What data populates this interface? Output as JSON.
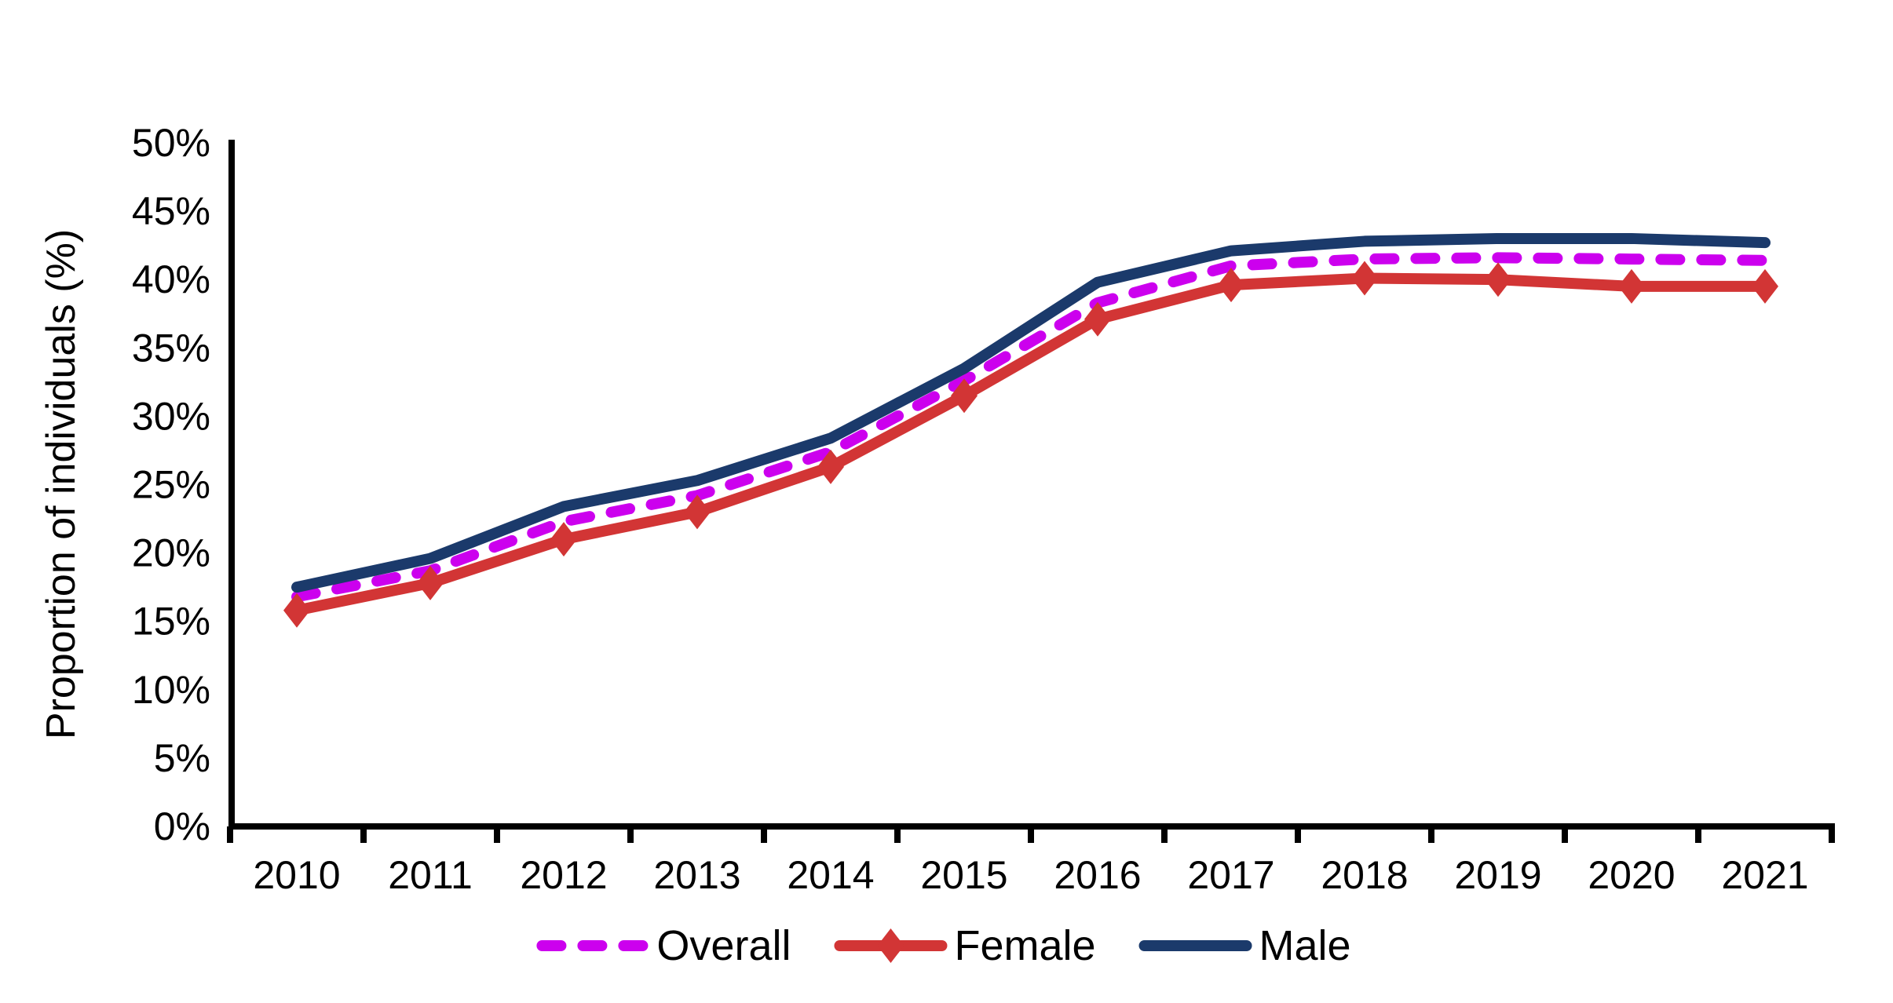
{
  "figure": {
    "background": "#FFFFFF",
    "text_color": "#000000",
    "axis_color": "#000000"
  },
  "chart_data": {
    "type": "line",
    "title": "",
    "xlabel": "",
    "ylabel": "Proportion of individuals (%)",
    "x": [
      2010,
      2011,
      2012,
      2013,
      2014,
      2015,
      2016,
      2017,
      2018,
      2019,
      2020,
      2021
    ],
    "series": [
      {
        "name": "Overall",
        "color": "#CC00EE",
        "line_style": "dashed",
        "marker": "none",
        "values": [
          16.8,
          18.7,
          22.3,
          24.2,
          27.4,
          32.6,
          38.3,
          41.0,
          41.5,
          41.6,
          41.5,
          41.4
        ]
      },
      {
        "name": "Female",
        "color": "#D23535",
        "line_style": "solid",
        "marker": "diamond",
        "values": [
          15.8,
          17.8,
          21.0,
          23.0,
          26.3,
          31.5,
          37.1,
          39.6,
          40.1,
          40.0,
          39.5,
          39.5
        ]
      },
      {
        "name": "Male",
        "color": "#1B3A6B",
        "line_style": "solid",
        "marker": "none",
        "values": [
          17.5,
          19.6,
          23.4,
          25.3,
          28.4,
          33.5,
          39.8,
          42.1,
          42.8,
          43.0,
          43.0,
          42.7
        ]
      }
    ],
    "ylim": [
      0,
      50
    ],
    "ytick_step": 5,
    "yticks": [
      "0%",
      "5%",
      "10%",
      "15%",
      "20%",
      "25%",
      "30%",
      "35%",
      "40%",
      "45%",
      "50%"
    ],
    "grid": false,
    "legend_position": "bottom",
    "legend_labels": [
      "Overall",
      "Female",
      "Male"
    ]
  }
}
